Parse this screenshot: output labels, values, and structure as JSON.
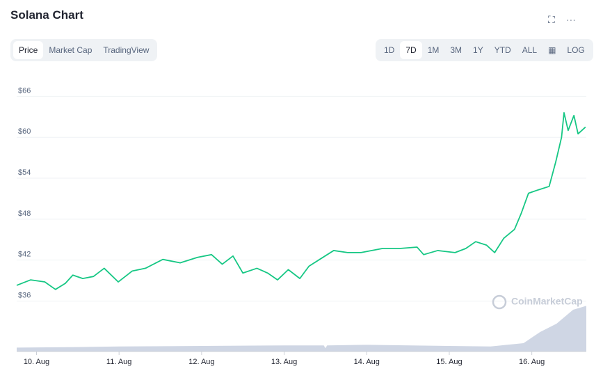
{
  "header": {
    "title": "Solana Chart"
  },
  "tabs": [
    "Price",
    "Market Cap",
    "TradingView"
  ],
  "ranges": [
    "1D",
    "7D",
    "1M",
    "3M",
    "1Y",
    "YTD",
    "ALL"
  ],
  "scale_toggle": "LOG",
  "watermark": "CoinMarketCap",
  "chart_data": {
    "type": "line",
    "x": [
      9.76,
      9.93,
      10.1,
      10.23,
      10.35,
      10.44,
      10.56,
      10.69,
      10.82,
      10.99,
      11.16,
      11.32,
      11.53,
      11.74,
      11.95,
      12.12,
      12.25,
      12.38,
      12.5,
      12.67,
      12.8,
      12.92,
      13.05,
      13.19,
      13.3,
      13.43,
      13.6,
      13.77,
      13.93,
      14.19,
      14.4,
      14.61,
      14.69,
      14.86,
      15.07,
      15.2,
      15.32,
      15.45,
      15.55,
      15.66,
      15.79,
      15.87,
      15.96,
      16.08,
      16.21,
      16.29,
      16.36,
      16.39,
      16.44,
      16.51,
      16.56,
      16.65
    ],
    "series": [
      {
        "color": "#16c784",
        "values": [
          38.3,
          39.1,
          38.8,
          37.7,
          38.6,
          39.8,
          39.3,
          39.6,
          40.8,
          38.8,
          40.4,
          40.8,
          42.1,
          41.6,
          42.4,
          42.8,
          41.4,
          42.6,
          40.1,
          40.8,
          40.1,
          39.1,
          40.6,
          39.3,
          41.1,
          42.1,
          43.4,
          43.1,
          43.1,
          43.7,
          43.7,
          43.9,
          42.8,
          43.4,
          43.1,
          43.7,
          44.7,
          44.2,
          43.1,
          45.2,
          46.5,
          48.8,
          51.8,
          52.3,
          52.8,
          56.4,
          60.0,
          63.6,
          61.0,
          63.2,
          60.5,
          61.5
        ]
      }
    ],
    "volume": {
      "color": "#cfd6e4",
      "x": [
        9.76,
        10.5,
        11.0,
        12.0,
        13.0,
        13.48,
        13.5,
        13.52,
        14.0,
        15.0,
        15.5,
        15.9,
        16.1,
        16.3,
        16.5,
        16.66
      ],
      "values": [
        7,
        8,
        9,
        10,
        11,
        11,
        6,
        11,
        12,
        10,
        9,
        15,
        35,
        50,
        75,
        82
      ]
    },
    "xlim": [
      9.76,
      16.66
    ],
    "xticks": [
      {
        "value": 10,
        "label": "10. Aug"
      },
      {
        "value": 11,
        "label": "11. Aug"
      },
      {
        "value": 12,
        "label": "12. Aug"
      },
      {
        "value": 13,
        "label": "13. Aug"
      },
      {
        "value": 14,
        "label": "14. Aug"
      },
      {
        "value": 15,
        "label": "15. Aug"
      },
      {
        "value": 16,
        "label": "16. Aug"
      }
    ],
    "ylim": [
      28.6,
      68.9
    ],
    "yticks": [
      {
        "value": 36,
        "label": "$36"
      },
      {
        "value": 42,
        "label": "$42"
      },
      {
        "value": 48,
        "label": "$48"
      },
      {
        "value": 54,
        "label": "$54"
      },
      {
        "value": 60,
        "label": "$60"
      },
      {
        "value": 66,
        "label": "$66"
      }
    ],
    "y2lim": [
      0,
      100
    ],
    "grid": true
  }
}
